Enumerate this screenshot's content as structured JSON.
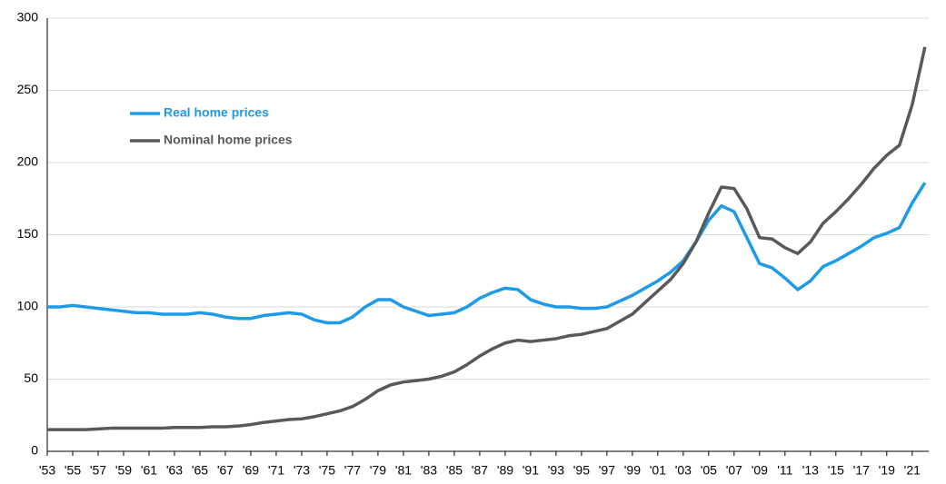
{
  "chart_data": {
    "type": "line",
    "x": [
      1953,
      1954,
      1955,
      1956,
      1957,
      1958,
      1959,
      1960,
      1961,
      1962,
      1963,
      1964,
      1965,
      1966,
      1967,
      1968,
      1969,
      1970,
      1971,
      1972,
      1973,
      1974,
      1975,
      1976,
      1977,
      1978,
      1979,
      1980,
      1981,
      1982,
      1983,
      1984,
      1985,
      1986,
      1987,
      1988,
      1989,
      1990,
      1991,
      1992,
      1993,
      1994,
      1995,
      1996,
      1997,
      1998,
      1999,
      2000,
      2001,
      2002,
      2003,
      2004,
      2005,
      2006,
      2007,
      2008,
      2009,
      2010,
      2011,
      2012,
      2013,
      2014,
      2015,
      2016,
      2017,
      2018,
      2019,
      2020,
      2021,
      2022
    ],
    "series": [
      {
        "name": "Real home prices",
        "color": "#1e9be8",
        "values": [
          100,
          100,
          101,
          100,
          99,
          98,
          97,
          96,
          96,
          95,
          95,
          95,
          96,
          95,
          93,
          92,
          92,
          94,
          95,
          96,
          95,
          91,
          89,
          89,
          93,
          100,
          105,
          105,
          100,
          97,
          94,
          95,
          96,
          100,
          106,
          110,
          113,
          112,
          105,
          102,
          100,
          100,
          99,
          99,
          100,
          104,
          108,
          113,
          118,
          124,
          132,
          145,
          160,
          170,
          166,
          148,
          130,
          127,
          120,
          112,
          118,
          128,
          132,
          137,
          142,
          148,
          151,
          155,
          172,
          186
        ]
      },
      {
        "name": "Nominal home prices",
        "color": "#595959",
        "values": [
          15,
          15,
          15,
          15,
          15.5,
          16,
          16,
          16,
          16,
          16,
          16.5,
          16.5,
          16.5,
          17,
          17,
          17.5,
          18.5,
          20,
          21,
          22,
          22.5,
          24,
          26,
          28,
          31,
          36,
          42,
          46,
          48,
          49,
          50,
          52,
          55,
          60,
          66,
          71,
          75,
          77,
          76,
          77,
          78,
          80,
          81,
          83,
          85,
          90,
          95,
          103,
          111,
          119,
          130,
          145,
          165,
          183,
          182,
          168,
          148,
          147,
          141,
          137,
          145,
          158,
          166,
          175,
          185,
          196,
          205,
          212,
          240,
          280
        ]
      }
    ],
    "xlim": [
      1953,
      2022.3
    ],
    "xticks": [
      {
        "value": 1953,
        "label": "'53"
      },
      {
        "value": 1955,
        "label": "'55"
      },
      {
        "value": 1957,
        "label": "'57"
      },
      {
        "value": 1959,
        "label": "'59"
      },
      {
        "value": 1961,
        "label": "'61"
      },
      {
        "value": 1963,
        "label": "'63"
      },
      {
        "value": 1965,
        "label": "'65"
      },
      {
        "value": 1967,
        "label": "'67"
      },
      {
        "value": 1969,
        "label": "'69"
      },
      {
        "value": 1971,
        "label": "'71"
      },
      {
        "value": 1973,
        "label": "'73"
      },
      {
        "value": 1975,
        "label": "'75"
      },
      {
        "value": 1977,
        "label": "'77"
      },
      {
        "value": 1979,
        "label": "'79"
      },
      {
        "value": 1981,
        "label": "'81"
      },
      {
        "value": 1983,
        "label": "'83"
      },
      {
        "value": 1985,
        "label": "'85"
      },
      {
        "value": 1987,
        "label": "'87"
      },
      {
        "value": 1989,
        "label": "'89"
      },
      {
        "value": 1991,
        "label": "'91"
      },
      {
        "value": 1993,
        "label": "'93"
      },
      {
        "value": 1995,
        "label": "'95"
      },
      {
        "value": 1997,
        "label": "'97"
      },
      {
        "value": 1999,
        "label": "'99"
      },
      {
        "value": 2001,
        "label": "'01"
      },
      {
        "value": 2003,
        "label": "'03"
      },
      {
        "value": 2005,
        "label": "'05"
      },
      {
        "value": 2007,
        "label": "'07"
      },
      {
        "value": 2009,
        "label": "'09"
      },
      {
        "value": 2011,
        "label": "'11"
      },
      {
        "value": 2013,
        "label": "'13"
      },
      {
        "value": 2015,
        "label": "'15"
      },
      {
        "value": 2017,
        "label": "'17"
      },
      {
        "value": 2019,
        "label": "'19"
      },
      {
        "value": 2021,
        "label": "'21"
      }
    ],
    "ylim": [
      0,
      300
    ],
    "yticks": [
      0,
      50,
      100,
      150,
      200,
      250,
      300
    ],
    "grid": true
  }
}
